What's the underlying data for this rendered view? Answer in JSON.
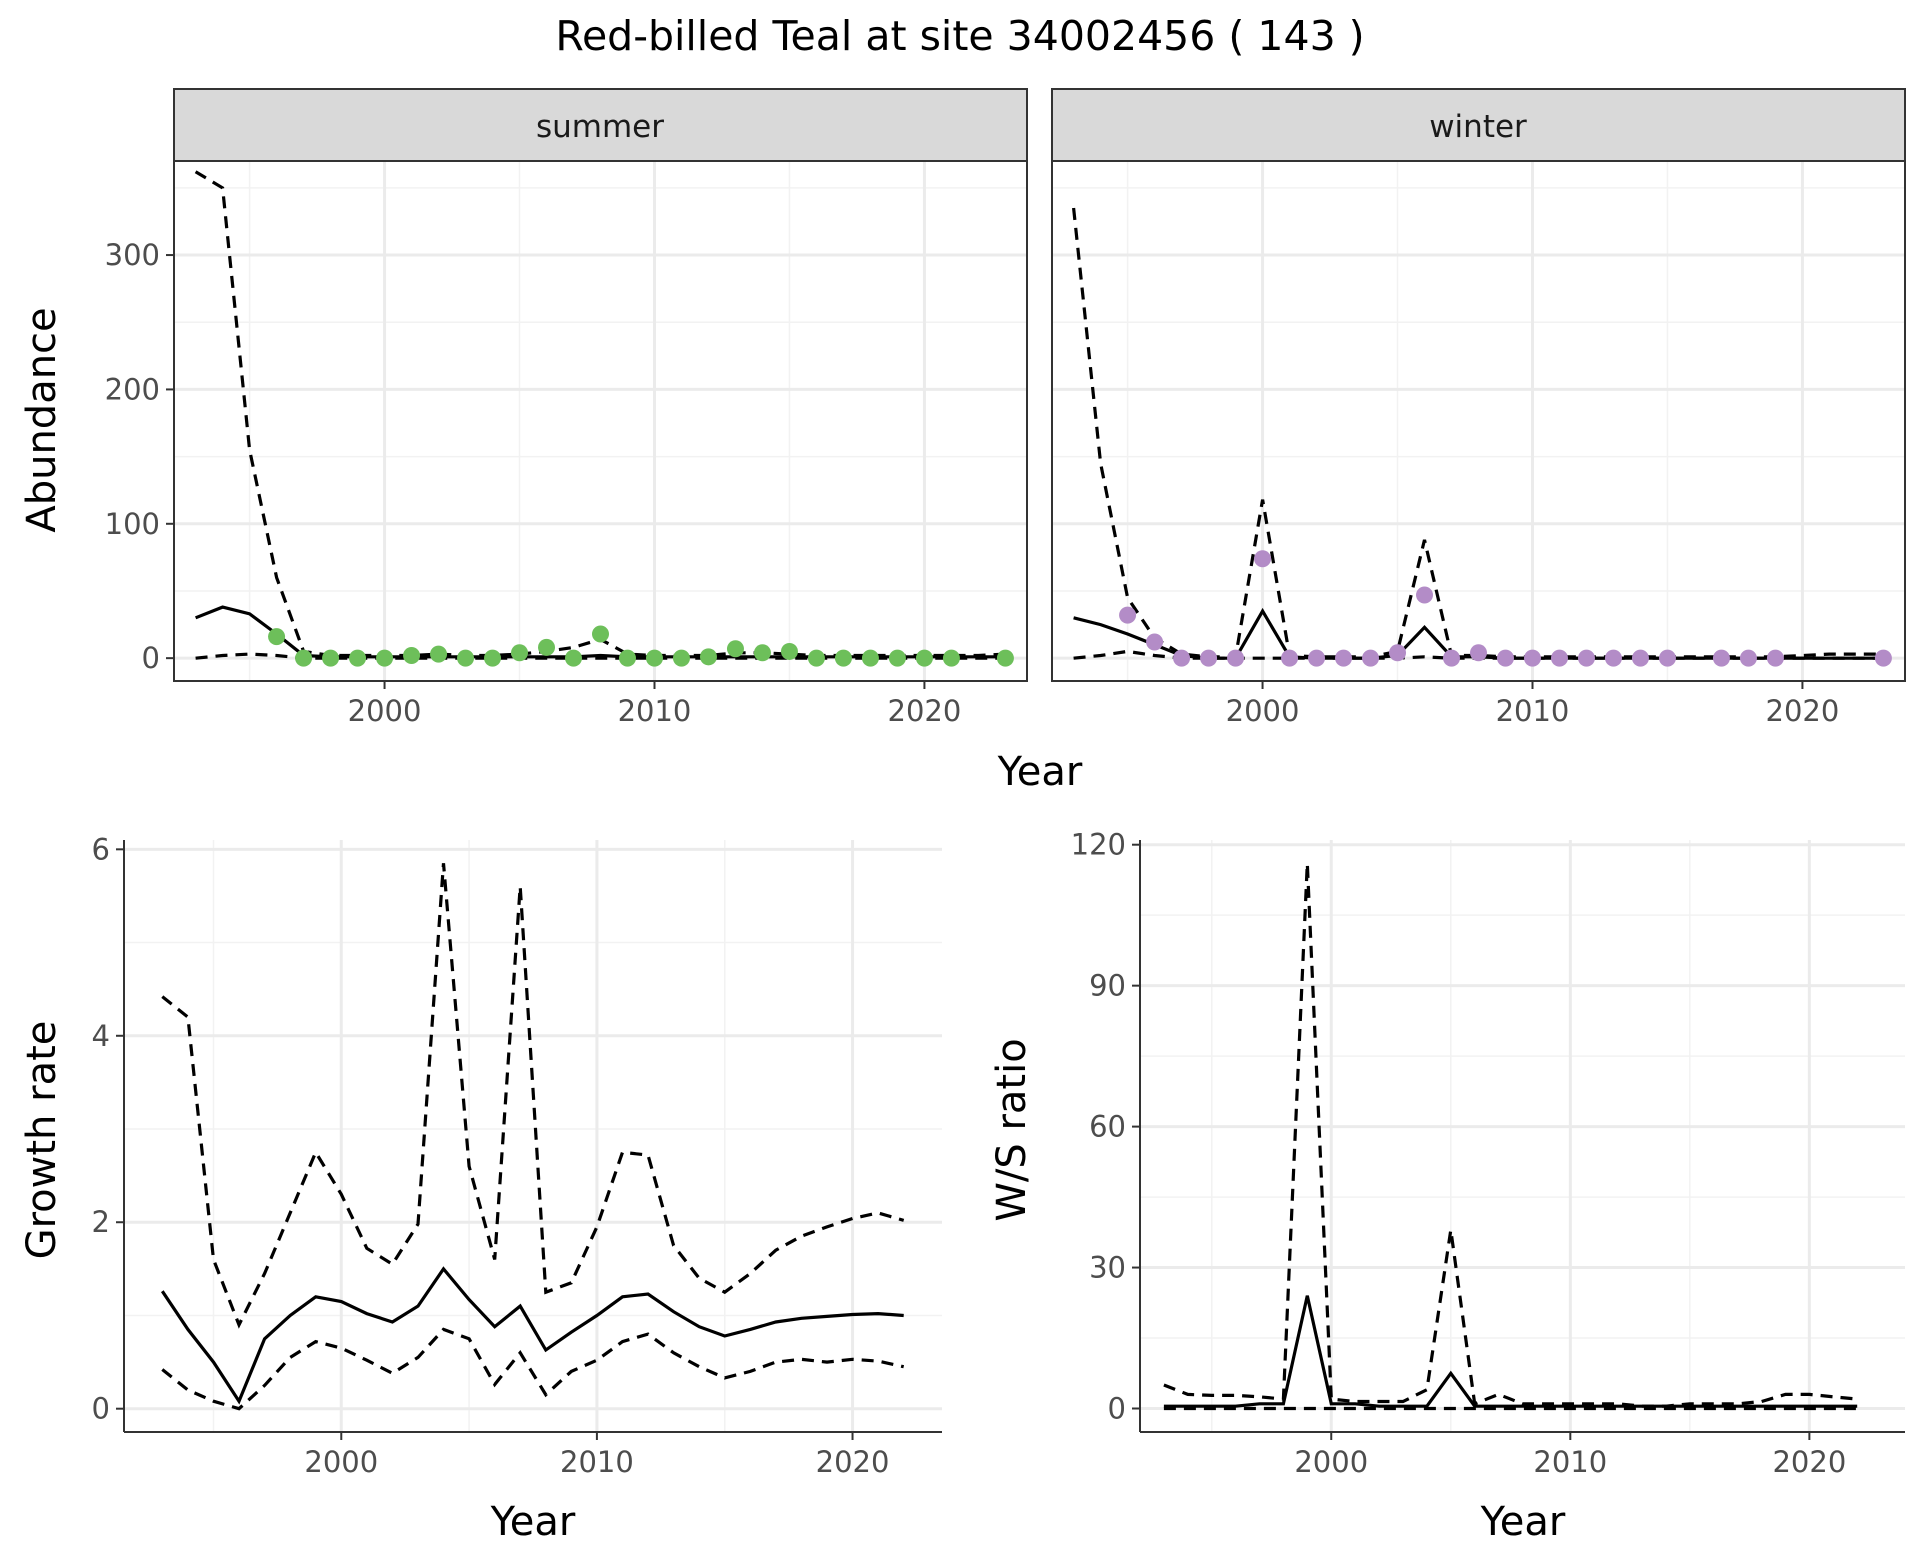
{
  "title": "Red-billed Teal at site 34002456 ( 143 )",
  "colors": {
    "summer_points": "#6dbf5a",
    "winter_points": "#b38cc7",
    "line": "#000000",
    "strip_fill": "#d9d9d9",
    "grid_major": "#ebebeb",
    "panel_border": "#333333"
  },
  "chart_data": [
    {
      "type": "line",
      "facet": "summer",
      "xlabel": "Year",
      "ylabel": "Abundance",
      "xlim": [
        1992.2,
        2023.8
      ],
      "ylim": [
        -17,
        370
      ],
      "xticks": [
        2000,
        2010,
        2020
      ],
      "yticks": [
        0,
        100,
        200,
        300
      ],
      "grid": true,
      "x": [
        1993,
        1994,
        1995,
        1996,
        1997,
        1998,
        1999,
        2000,
        2001,
        2002,
        2003,
        2004,
        2005,
        2006,
        2007,
        2008,
        2009,
        2010,
        2011,
        2012,
        2013,
        2014,
        2015,
        2016,
        2017,
        2018,
        2019,
        2020,
        2021,
        2022,
        2023
      ],
      "estimate": [
        30,
        38,
        33,
        18,
        2,
        1,
        1,
        1,
        1,
        1,
        1,
        1,
        1,
        1,
        1,
        2,
        1,
        1,
        1,
        1,
        1,
        1,
        1,
        1,
        1,
        1,
        1,
        1,
        1,
        1,
        1
      ],
      "upper": [
        362,
        350,
        155,
        60,
        5,
        2,
        2,
        2,
        2,
        3,
        2,
        2,
        3,
        5,
        8,
        14,
        3,
        2,
        2,
        2,
        4,
        4,
        3,
        2,
        2,
        2,
        2,
        2,
        2,
        2,
        3
      ],
      "lower": [
        0,
        2,
        3,
        2,
        0,
        0,
        0,
        0,
        0,
        0,
        0,
        0,
        0,
        0,
        0,
        0,
        0,
        0,
        0,
        0,
        0,
        0,
        0,
        0,
        0,
        0,
        0,
        0,
        0,
        0,
        0
      ],
      "points": [
        [
          1996,
          16
        ],
        [
          1997,
          0
        ],
        [
          1998,
          0
        ],
        [
          1999,
          0
        ],
        [
          2000,
          0
        ],
        [
          2001,
          2
        ],
        [
          2002,
          3
        ],
        [
          2003,
          0
        ],
        [
          2004,
          0
        ],
        [
          2005,
          4
        ],
        [
          2006,
          8
        ],
        [
          2007,
          0
        ],
        [
          2008,
          18
        ],
        [
          2009,
          0
        ],
        [
          2010,
          0
        ],
        [
          2011,
          0
        ],
        [
          2012,
          1
        ],
        [
          2013,
          7
        ],
        [
          2014,
          4
        ],
        [
          2015,
          5
        ],
        [
          2016,
          0
        ],
        [
          2017,
          0
        ],
        [
          2018,
          0
        ],
        [
          2019,
          0
        ],
        [
          2020,
          0
        ],
        [
          2021,
          0
        ],
        [
          2023,
          0
        ]
      ]
    },
    {
      "type": "line",
      "facet": "winter",
      "xlabel": "Year",
      "ylabel": "Abundance",
      "xlim": [
        1992.2,
        2023.8
      ],
      "ylim": [
        -17,
        370
      ],
      "xticks": [
        2000,
        2010,
        2020
      ],
      "yticks": [
        0,
        100,
        200,
        300
      ],
      "grid": true,
      "x": [
        1993,
        1994,
        1995,
        1996,
        1997,
        1998,
        1999,
        2000,
        2001,
        2002,
        2003,
        2004,
        2005,
        2006,
        2007,
        2008,
        2009,
        2010,
        2011,
        2012,
        2013,
        2014,
        2015,
        2016,
        2017,
        2018,
        2019,
        2020,
        2021,
        2022,
        2023
      ],
      "estimate": [
        30,
        25,
        18,
        10,
        2,
        0,
        0,
        35,
        1,
        0,
        0,
        0,
        2,
        23,
        1,
        1,
        0,
        0,
        0,
        0,
        0,
        0,
        0,
        0,
        0,
        0,
        0,
        0,
        0,
        0,
        0
      ],
      "upper": [
        335,
        145,
        45,
        15,
        3,
        1,
        1,
        118,
        2,
        1,
        1,
        1,
        5,
        88,
        2,
        2,
        1,
        1,
        1,
        1,
        1,
        1,
        1,
        1,
        1,
        1,
        1,
        2,
        3,
        3,
        3
      ],
      "lower": [
        0,
        2,
        5,
        2,
        0,
        0,
        0,
        0,
        0,
        0,
        0,
        0,
        0,
        1,
        0,
        0,
        0,
        0,
        0,
        0,
        0,
        0,
        0,
        0,
        0,
        0,
        0,
        0,
        0,
        0,
        0
      ],
      "points": [
        [
          1995,
          32
        ],
        [
          1996,
          12
        ],
        [
          1997,
          0
        ],
        [
          1998,
          0
        ],
        [
          1999,
          0
        ],
        [
          2000,
          74
        ],
        [
          2001,
          0
        ],
        [
          2002,
          0
        ],
        [
          2003,
          0
        ],
        [
          2004,
          0
        ],
        [
          2005,
          4
        ],
        [
          2006,
          47
        ],
        [
          2007,
          0
        ],
        [
          2008,
          4
        ],
        [
          2009,
          0
        ],
        [
          2010,
          0
        ],
        [
          2011,
          0
        ],
        [
          2012,
          0
        ],
        [
          2013,
          0
        ],
        [
          2014,
          0
        ],
        [
          2015,
          0
        ],
        [
          2017,
          0
        ],
        [
          2018,
          0
        ],
        [
          2019,
          0
        ],
        [
          2023,
          0
        ]
      ]
    },
    {
      "type": "line",
      "xlabel": "Year",
      "ylabel": "Growth rate",
      "xlim": [
        1991.5,
        2023.5
      ],
      "ylim": [
        -0.25,
        6.1
      ],
      "xticks": [
        2000,
        2010,
        2020
      ],
      "yticks": [
        0,
        2,
        4,
        6
      ],
      "grid": true,
      "x": [
        1993,
        1994,
        1995,
        1996,
        1997,
        1998,
        1999,
        2000,
        2001,
        2002,
        2003,
        2004,
        2005,
        2006,
        2007,
        2008,
        2009,
        2010,
        2011,
        2012,
        2013,
        2014,
        2015,
        2016,
        2017,
        2018,
        2019,
        2020,
        2021,
        2022
      ],
      "estimate": [
        1.26,
        0.85,
        0.5,
        0.08,
        0.75,
        1.0,
        1.2,
        1.15,
        1.02,
        0.93,
        1.1,
        1.5,
        1.17,
        0.88,
        1.1,
        0.63,
        0.82,
        1.0,
        1.2,
        1.23,
        1.04,
        0.88,
        0.78,
        0.85,
        0.93,
        0.97,
        0.99,
        1.01,
        1.02,
        1.0
      ],
      "upper": [
        4.42,
        4.2,
        1.6,
        0.9,
        1.45,
        2.1,
        2.75,
        2.3,
        1.72,
        1.55,
        1.98,
        5.85,
        2.6,
        1.6,
        5.6,
        1.25,
        1.35,
        1.95,
        2.75,
        2.72,
        1.75,
        1.4,
        1.25,
        1.45,
        1.7,
        1.85,
        1.95,
        2.04,
        2.1,
        2.02
      ],
      "lower": [
        0.42,
        0.2,
        0.08,
        0.0,
        0.25,
        0.55,
        0.72,
        0.65,
        0.52,
        0.38,
        0.55,
        0.85,
        0.75,
        0.26,
        0.6,
        0.15,
        0.4,
        0.52,
        0.72,
        0.8,
        0.6,
        0.45,
        0.33,
        0.4,
        0.5,
        0.53,
        0.5,
        0.53,
        0.51,
        0.45
      ]
    },
    {
      "type": "line",
      "xlabel": "Year",
      "ylabel": "W/S ratio",
      "xlim": [
        1992,
        2024
      ],
      "ylim": [
        -5,
        121
      ],
      "xticks": [
        2000,
        2010,
        2020
      ],
      "yticks": [
        0,
        30,
        60,
        90,
        120
      ],
      "grid": true,
      "x": [
        1993,
        1994,
        1995,
        1996,
        1997,
        1998,
        1999,
        2000,
        2001,
        2002,
        2003,
        2004,
        2005,
        2006,
        2007,
        2008,
        2009,
        2010,
        2011,
        2012,
        2013,
        2014,
        2015,
        2016,
        2017,
        2018,
        2019,
        2020,
        2021,
        2022
      ],
      "estimate": [
        0.5,
        0.5,
        0.5,
        0.5,
        1,
        1,
        24,
        1,
        1,
        0.5,
        0.5,
        0.5,
        7.5,
        0.5,
        0.5,
        0.5,
        0.5,
        0.5,
        0.5,
        0.5,
        0.5,
        0.5,
        0.5,
        0.5,
        0.5,
        0.5,
        0.5,
        0.5,
        0.5,
        0.5
      ],
      "upper": [
        5,
        3,
        2.8,
        2.8,
        2.5,
        2,
        116,
        2,
        1.5,
        1.5,
        1.5,
        4,
        38,
        1,
        3,
        1,
        1,
        1,
        1,
        1,
        0.5,
        0.5,
        1,
        1,
        1,
        1.5,
        3,
        3,
        2.5,
        2
      ],
      "lower": [
        0,
        0,
        0,
        0,
        0,
        0,
        0,
        0,
        0,
        0,
        0,
        0,
        0,
        0,
        0,
        0,
        0,
        0,
        0,
        0,
        0,
        0,
        0,
        0,
        0,
        0,
        0,
        0,
        0,
        0
      ]
    }
  ]
}
